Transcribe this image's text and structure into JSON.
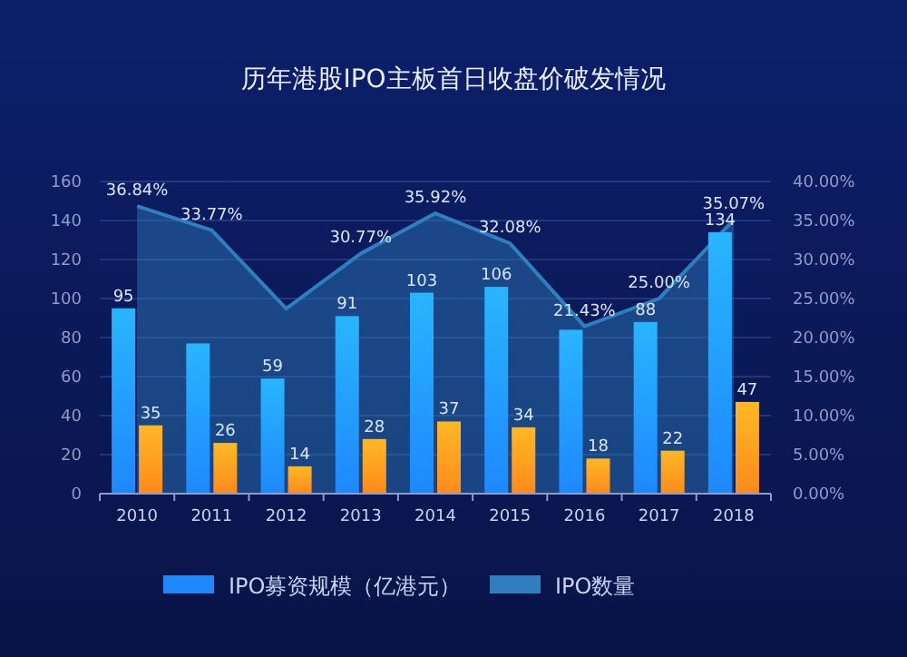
{
  "chart_data": {
    "type": "bar",
    "title": "历年港股IPO主板首日收盘价破发情况",
    "categories": [
      "2010",
      "2011",
      "2012",
      "2013",
      "2014",
      "2015",
      "2016",
      "2017",
      "2018"
    ],
    "series": [
      {
        "name": "IPO募资规模（亿港元）",
        "color": "#1e88ff",
        "values": [
          95,
          77,
          59,
          91,
          103,
          106,
          84,
          88,
          134
        ],
        "value_labels": [
          "95",
          null,
          "59",
          "91",
          "103",
          "106",
          null,
          "88",
          "134"
        ]
      },
      {
        "color": "#ff8a1c",
        "values": [
          35,
          26,
          14,
          28,
          37,
          34,
          18,
          22,
          47
        ],
        "value_labels": [
          "35",
          "26",
          "14",
          "28",
          "37",
          "34",
          "18",
          "22",
          "47"
        ]
      },
      {
        "name": "IPO数量",
        "type": "area",
        "axis": "y2",
        "color": "#2f7fbf",
        "values": [
          36.84,
          33.77,
          23.7,
          30.77,
          35.92,
          32.08,
          21.43,
          25.0,
          35.07
        ],
        "value_labels": [
          "36.84%",
          "33.77%",
          null,
          "30.77%",
          "35.92%",
          "32.08%",
          "21.43%",
          "25.00%",
          "35.07%"
        ]
      }
    ],
    "ylim": [
      0,
      160
    ],
    "yticks": [
      0,
      20,
      40,
      60,
      80,
      100,
      120,
      140,
      160
    ],
    "y2lim": [
      0,
      40
    ],
    "y2ticks": [
      {
        "value": 0,
        "label": "0.00%"
      },
      {
        "value": 5,
        "label": "5.00%"
      },
      {
        "value": 10,
        "label": "10.00%"
      },
      {
        "value": 15,
        "label": "15.00%"
      },
      {
        "value": 20,
        "label": "20.00%"
      },
      {
        "value": 25,
        "label": "25.00%"
      },
      {
        "value": 30,
        "label": "30.00%"
      },
      {
        "value": 35,
        "label": "35.00%"
      },
      {
        "value": 40,
        "label": "40.00%"
      }
    ],
    "grid": "y",
    "legend": "bottom"
  }
}
